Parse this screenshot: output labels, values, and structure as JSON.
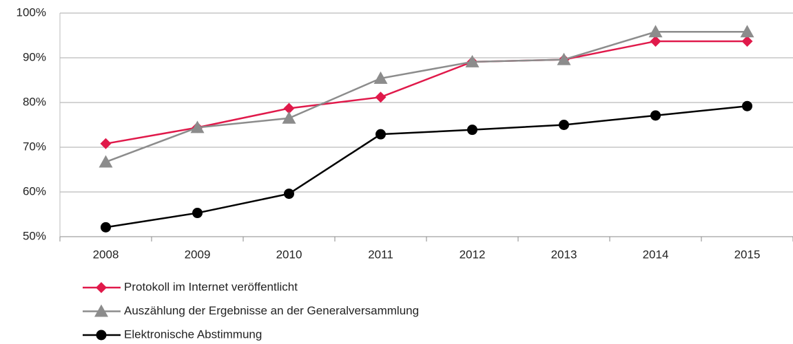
{
  "chart_data": {
    "type": "line",
    "categories": [
      "2008",
      "2009",
      "2010",
      "2011",
      "2012",
      "2013",
      "2014",
      "2015"
    ],
    "series": [
      {
        "name": "Protokoll im Internet veröffentlicht",
        "color": "#e0194a",
        "marker": "diamond",
        "values": [
          70.8,
          74.4,
          78.7,
          81.2,
          89.1,
          89.6,
          93.7,
          93.7
        ]
      },
      {
        "name": "Auszählung der Ergebnisse an der Generalversammlung",
        "color": "#8c8c8c",
        "marker": "triangle",
        "values": [
          66.7,
          74.4,
          76.5,
          85.4,
          89.1,
          89.6,
          95.8,
          95.8
        ]
      },
      {
        "name": "Elektronische Abstimmung",
        "color": "#000000",
        "marker": "circle",
        "values": [
          52.1,
          55.3,
          59.6,
          72.9,
          73.9,
          75.0,
          77.1,
          79.2
        ]
      }
    ],
    "ylim": [
      50,
      100
    ],
    "yticks": [
      {
        "value": 50,
        "label": "50%"
      },
      {
        "value": 60,
        "label": "60%"
      },
      {
        "value": 70,
        "label": "70%"
      },
      {
        "value": 80,
        "label": "80%"
      },
      {
        "value": 90,
        "label": "90%"
      },
      {
        "value": 100,
        "label": "100%"
      }
    ],
    "grid": true,
    "legend": "bottom"
  }
}
